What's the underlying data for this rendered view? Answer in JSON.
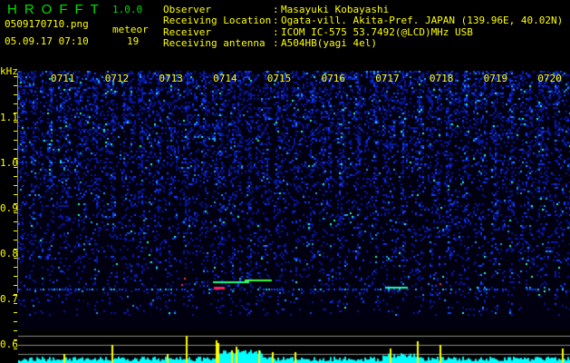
{
  "app": {
    "title": "HROFFT",
    "version": "1.0.0"
  },
  "file": {
    "name": "0509170710.png",
    "datetime": "05.09.17 07:10"
  },
  "meteor": {
    "label": "meteor",
    "count": "19"
  },
  "info": [
    {
      "label": "Observer",
      "value": "Masayuki Kobayashi"
    },
    {
      "label": "Receiving Location",
      "value": "Ogata-vill. Akita-Pref. JAPAN (139.96E, 40.02N)"
    },
    {
      "label": "Receiver",
      "value": "ICOM IC-575 53.7492(@LCD)MHz USB"
    },
    {
      "label": "Receiving antenna",
      "value": "A504HB(yagi 4el)"
    }
  ],
  "axis": {
    "unit": "kHz",
    "freq_labels": [
      "1.1",
      "1.0",
      "0.9",
      "0.8",
      "0.7",
      "0.6"
    ],
    "time_labels": [
      "0711",
      "0712",
      "0713",
      "0714",
      "0715",
      "0716",
      "0717",
      "0718",
      "0719",
      "0720"
    ]
  },
  "colors": {
    "text": "#ffff00",
    "title": "#00e000",
    "background": "#000000",
    "histogram": "#00ffff",
    "meteor_spike": "#ffff00"
  }
}
